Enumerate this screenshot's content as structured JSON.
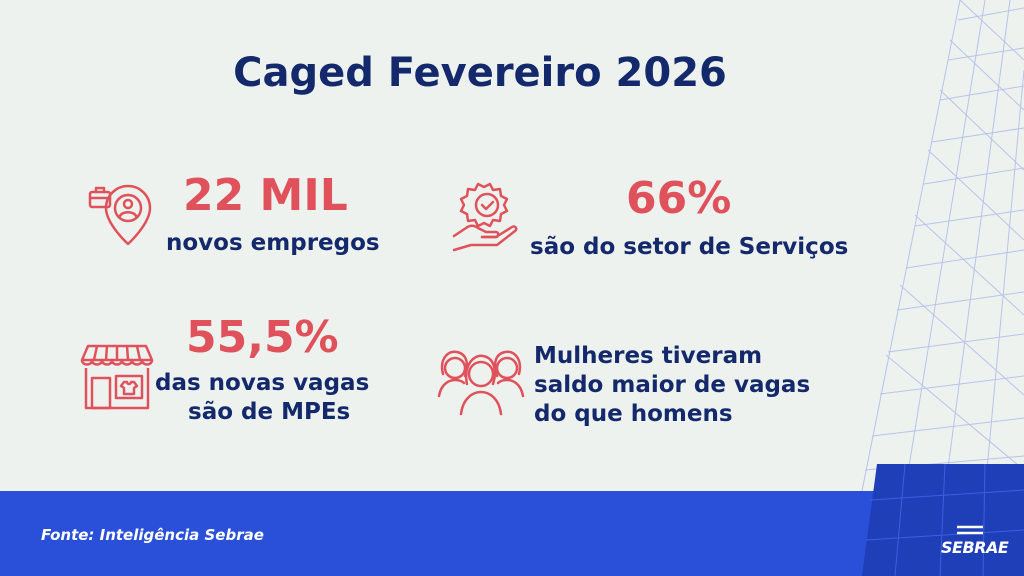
{
  "title": "Caged Fevereiro 2026",
  "stats": [
    {
      "value": "22 MIL",
      "caption": "novos empregos",
      "icon": "location-pin-briefcase-icon"
    },
    {
      "value": "66%",
      "caption": "são do setor de Serviços",
      "icon": "gear-check-hand-icon"
    },
    {
      "value": "55,5%",
      "caption_line1": "das novas vagas",
      "caption_line2": "são de MPEs",
      "icon": "storefront-icon"
    },
    {
      "caption_line1": "Mulheres tiveram",
      "caption_line2": "saldo maior de vagas",
      "caption_line3": "do que homens",
      "icon": "women-group-icon"
    }
  ],
  "footer": {
    "source": "Fonte: Inteligência Sebrae",
    "logo": "SEBRAE"
  },
  "colors": {
    "navy": "#13296b",
    "coral": "#e0525b",
    "blue": "#2a4fd8",
    "background": "#eef2ef"
  }
}
